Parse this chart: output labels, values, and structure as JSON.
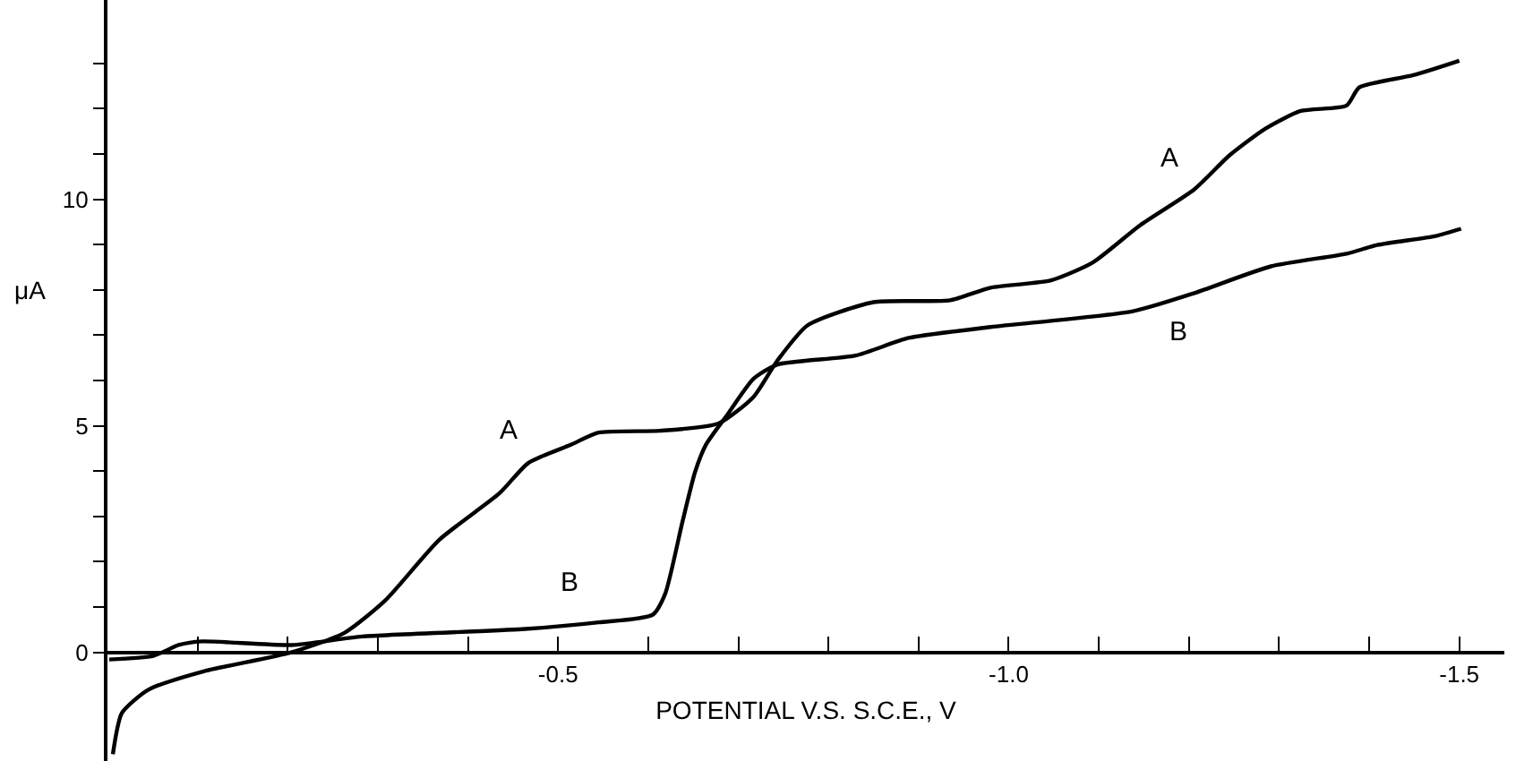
{
  "chart_data": {
    "type": "line",
    "xlabel": "POTENTIAL V.S. S.C.E., V",
    "ylabel": "μA",
    "xlim": [
      0,
      -1.55
    ],
    "ylim": [
      -2.4,
      14.4
    ],
    "xticks": [
      {
        "value": -0.1,
        "label": null
      },
      {
        "value": -0.2,
        "label": null
      },
      {
        "value": -0.3,
        "label": null
      },
      {
        "value": -0.4,
        "label": null
      },
      -0.5,
      {
        "value": -0.6,
        "label": null
      },
      {
        "value": -0.7,
        "label": null
      },
      {
        "value": -0.8,
        "label": null
      },
      {
        "value": -0.9,
        "label": null
      },
      {
        "value": -1.0,
        "label": "-1.0"
      },
      {
        "value": -1.1,
        "label": null
      },
      {
        "value": -1.2,
        "label": null
      },
      {
        "value": -1.3,
        "label": null
      },
      {
        "value": -1.4,
        "label": null
      },
      -1.5
    ],
    "yticks": [
      0,
      {
        "value": 1,
        "label": null
      },
      {
        "value": 2,
        "label": null
      },
      {
        "value": 3,
        "label": null
      },
      {
        "value": 4,
        "label": null
      },
      5,
      {
        "value": 6,
        "label": null
      },
      {
        "value": 7,
        "label": null
      },
      {
        "value": 8,
        "label": null
      },
      {
        "value": 9,
        "label": null
      },
      10,
      {
        "value": 11,
        "label": null
      },
      {
        "value": 12,
        "label": null
      },
      {
        "value": 13,
        "label": null
      }
    ],
    "legend": false,
    "marker": "none",
    "line_style": "solid",
    "series": [
      {
        "name": "A",
        "color": "#000000",
        "x": [
          -0.006,
          -0.016,
          -0.045,
          -0.105,
          -0.204,
          -0.263,
          -0.308,
          -0.368,
          -0.435,
          -0.467,
          -0.514,
          -0.545,
          -0.613,
          -0.678,
          -0.717,
          -0.743,
          -0.777,
          -0.85,
          -0.935,
          -0.98,
          -1.047,
          -1.093,
          -1.146,
          -1.206,
          -1.245,
          -1.285,
          -1.324,
          -1.375,
          -1.389,
          -1.449,
          -1.5
        ],
        "values": [
          -2.25,
          -1.34,
          -0.83,
          -0.43,
          0,
          0.43,
          1.14,
          2.48,
          3.51,
          4.18,
          4.58,
          4.85,
          4.89,
          5.05,
          5.64,
          6.43,
          7.22,
          7.73,
          7.77,
          8.05,
          8.21,
          8.6,
          9.43,
          10.22,
          10.97,
          11.56,
          11.95,
          12.07,
          12.47,
          12.74,
          13.06
        ]
      },
      {
        "name": "B",
        "color": "#000000",
        "x": [
          -0.002,
          -0.051,
          -0.079,
          -0.105,
          -0.204,
          -0.283,
          -0.46,
          -0.545,
          -0.605,
          -0.619,
          -0.638,
          -0.652,
          -0.664,
          -0.688,
          -0.717,
          -0.743,
          -0.83,
          -0.889,
          -0.98,
          -1.138,
          -1.206,
          -1.291,
          -1.375,
          -1.409,
          -1.474,
          -1.502
        ],
        "values": [
          -0.16,
          -0.08,
          0.16,
          0.24,
          0.16,
          0.35,
          0.51,
          0.66,
          0.83,
          1.3,
          2.88,
          3.98,
          4.58,
          5.25,
          6.04,
          6.35,
          6.55,
          6.94,
          7.18,
          7.53,
          7.93,
          8.52,
          8.8,
          8.99,
          9.19,
          9.35
        ]
      }
    ]
  }
}
